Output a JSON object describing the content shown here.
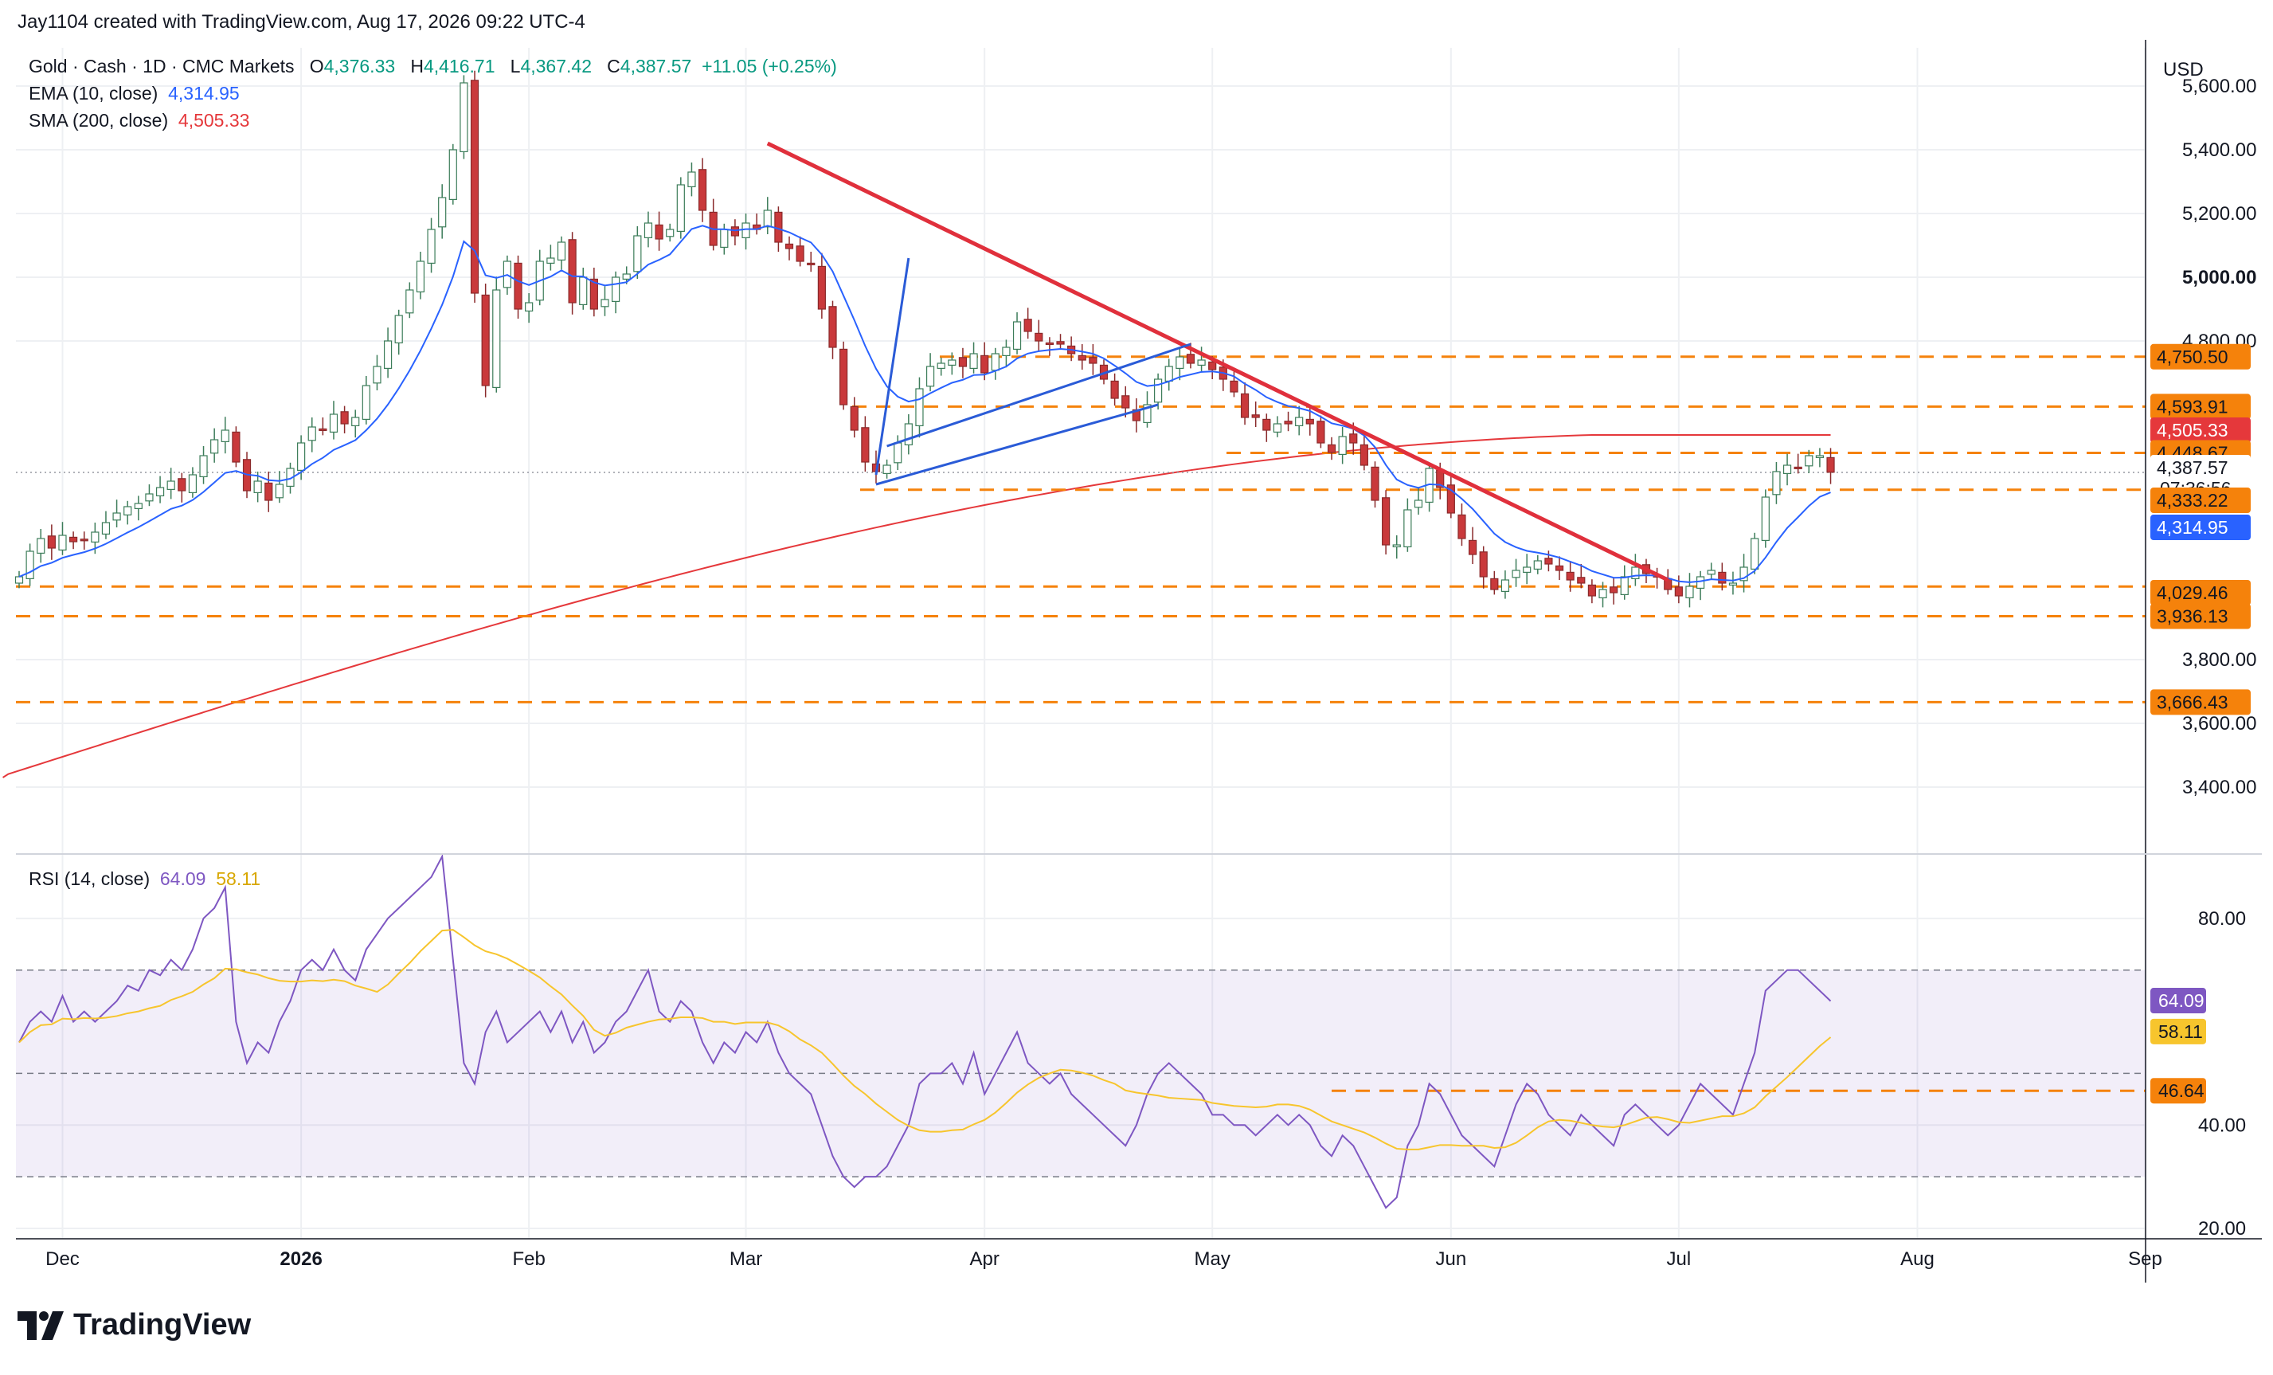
{
  "header": {
    "created_by": "Jay1104 created with TradingView.com, Aug 17, 2026 09:22 UTC-4",
    "symbol": "Gold · Cash · 1D · CMC Markets",
    "open_label": "O",
    "open": "4,376.33",
    "high_label": "H",
    "high": "4,416.71",
    "low_label": "L",
    "low": "4,367.42",
    "close_label": "C",
    "close": "4,387.57",
    "change": "+11.05 (+0.25%)"
  },
  "indicators": {
    "ema_label": "EMA (10, close)",
    "ema_value": "4,314.95",
    "sma_label": "SMA (200, close)",
    "sma_value": "4,505.33",
    "rsi_label": "RSI (14, close)",
    "rsi_value": "64.09",
    "rsi_ma_value": "58.11"
  },
  "currency": "USD",
  "footer": {
    "brand": "TradingView"
  },
  "colors": {
    "up": "#ffffff",
    "up_border": "#3d7d5a",
    "down": "#c9393b",
    "ema": "#2962ff",
    "sma": "#e5383b",
    "level": "#f5820b",
    "trend_red": "#e0303c",
    "channel_blue": "#2a5bd7",
    "rsi": "#7e57c2",
    "rsi_ma": "#f7c52d"
  },
  "chart_data": [
    {
      "type": "candlestick",
      "title": "Gold · Cash · 1D · CMC Markets",
      "ylim": [
        3200,
        5720
      ],
      "y_ticks": [
        "5,600.00",
        "5,400.00",
        "5,200.00",
        "5,000.00",
        "4,800.00",
        "3,800.00",
        "3,600.00",
        "3,400.00"
      ],
      "x_ticks": [
        "Dec",
        "2026",
        "Feb",
        "Mar",
        "Apr",
        "May",
        "Jun",
        "Jul",
        "Aug",
        "Sep"
      ],
      "horizontal_levels": [
        "4,750.50",
        "4,593.91",
        "4,448.67",
        "4,333.22",
        "4,029.46",
        "3,936.13",
        "3,666.43"
      ],
      "price_tags": [
        {
          "label": "4,750.50",
          "kind": "level"
        },
        {
          "label": "4,593.91",
          "kind": "level"
        },
        {
          "label": "4,505.33",
          "kind": "sma"
        },
        {
          "label": "4,448.67",
          "kind": "level"
        },
        {
          "label": "4,387.57",
          "sub": "07:36:56",
          "kind": "last"
        },
        {
          "label": "4,333.22",
          "kind": "level"
        },
        {
          "label": "4,314.95",
          "kind": "ema"
        },
        {
          "label": "4,029.46",
          "kind": "level"
        },
        {
          "label": "3,936.13",
          "kind": "level"
        },
        {
          "label": "3,666.43",
          "kind": "level"
        }
      ],
      "series": [
        {
          "name": "Gold · Cash",
          "close": [
            4060,
            4140,
            4180,
            4150,
            4190,
            4170,
            4175,
            4200,
            4230,
            4260,
            4280,
            4290,
            4320,
            4340,
            4360,
            4330,
            4380,
            4440,
            4490,
            4520,
            4420,
            4330,
            4360,
            4300,
            4350,
            4400,
            4480,
            4530,
            4520,
            4570,
            4540,
            4560,
            4660,
            4720,
            4800,
            4880,
            4960,
            5050,
            5150,
            5250,
            5400,
            5610,
            4950,
            4660,
            4960,
            5050,
            4900,
            4920,
            5050,
            5060,
            5110,
            4920,
            5000,
            4900,
            4930,
            5000,
            5010,
            5130,
            5170,
            5120,
            5150,
            5290,
            5330,
            5210,
            5100,
            5150,
            5130,
            5170,
            5150,
            5210,
            5110,
            5090,
            5050,
            5040,
            4900,
            4780,
            4600,
            4520,
            4420,
            4390,
            4410,
            4480,
            4540,
            4650,
            4720,
            4730,
            4740,
            4720,
            4760,
            4700,
            4760,
            4780,
            4860,
            4830,
            4800,
            4790,
            4790,
            4760,
            4740,
            4730,
            4680,
            4620,
            4590,
            4550,
            4600,
            4680,
            4720,
            4750,
            4730,
            4740,
            4710,
            4680,
            4640,
            4560,
            4560,
            4520,
            4540,
            4540,
            4560,
            4540,
            4480,
            4450,
            4500,
            4480,
            4410,
            4300,
            4160,
            4160,
            4270,
            4300,
            4400,
            4340,
            4260,
            4180,
            4130,
            4060,
            4020,
            4050,
            4080,
            4090,
            4110,
            4100,
            4080,
            4050,
            4040,
            4000,
            4020,
            4010,
            4060,
            4090,
            4070,
            4060,
            4020,
            4000,
            4030,
            4060,
            4080,
            4040,
            4040,
            4090,
            4180,
            4310,
            4390,
            4410,
            4400,
            4440,
            4440,
            4388
          ]
        },
        {
          "name": "EMA (10, close)",
          "values_last": "4,314.95"
        },
        {
          "name": "SMA (200, close)",
          "values_last": "4,505.33"
        }
      ]
    },
    {
      "type": "line",
      "title": "RSI (14, close)",
      "ylim": [
        18,
        92
      ],
      "y_ticks": [
        "80.00",
        "40.00",
        "20.00"
      ],
      "bands": [
        70,
        30
      ],
      "level": "46.64",
      "price_tags": [
        {
          "label": "64.09",
          "kind": "rsi"
        },
        {
          "label": "58.11",
          "kind": "rsi_ma"
        },
        {
          "label": "46.64",
          "kind": "level"
        }
      ],
      "series": [
        {
          "name": "RSI (14, close)",
          "values": [
            56,
            60,
            62,
            60,
            65,
            60,
            62,
            60,
            62,
            64,
            67,
            66,
            70,
            69,
            72,
            70,
            74,
            80,
            82,
            86,
            60,
            52,
            56,
            54,
            60,
            64,
            70,
            72,
            70,
            74,
            70,
            68,
            74,
            77,
            80,
            82,
            84,
            86,
            88,
            92,
            72,
            52,
            48,
            58,
            62,
            56,
            58,
            60,
            62,
            58,
            62,
            56,
            60,
            54,
            56,
            60,
            62,
            66,
            70,
            62,
            60,
            64,
            62,
            56,
            52,
            56,
            54,
            58,
            56,
            60,
            54,
            50,
            48,
            46,
            40,
            34,
            30,
            28,
            30,
            30,
            32,
            36,
            40,
            48,
            50,
            50,
            52,
            48,
            54,
            46,
            50,
            54,
            58,
            52,
            50,
            48,
            50,
            46,
            44,
            42,
            40,
            38,
            36,
            40,
            46,
            50,
            52,
            50,
            48,
            46,
            42,
            42,
            40,
            40,
            38,
            40,
            42,
            40,
            42,
            40,
            36,
            34,
            38,
            36,
            32,
            28,
            24,
            26,
            36,
            40,
            48,
            46,
            42,
            38,
            36,
            34,
            32,
            38,
            44,
            48,
            46,
            42,
            40,
            38,
            42,
            40,
            38,
            36,
            42,
            44,
            42,
            40,
            38,
            40,
            44,
            48,
            46,
            44,
            42,
            48,
            54,
            66,
            68,
            70,
            70,
            68,
            66,
            64
          ]
        },
        {
          "name": "RSI MA",
          "values_last": "58.11"
        }
      ]
    }
  ]
}
